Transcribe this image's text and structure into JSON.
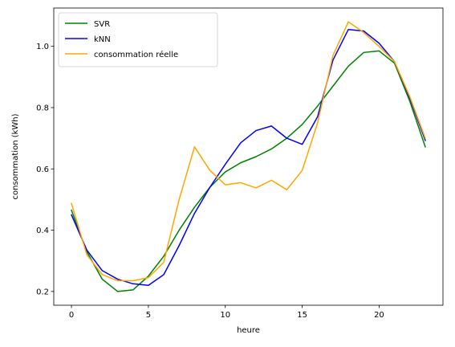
{
  "chart_data": {
    "type": "line",
    "xlabel": "heure",
    "ylabel": "consommation (kWh)",
    "xlim": [
      -1.15,
      24.15
    ],
    "ylim": [
      0.155,
      1.125
    ],
    "xticks": [
      0,
      5,
      10,
      15,
      20
    ],
    "xtick_labels": [
      "0",
      "5",
      "10",
      "15",
      "20"
    ],
    "yticks": [
      0.2,
      0.4,
      0.6,
      0.8,
      1.0
    ],
    "ytick_labels": [
      "0.2",
      "0.4",
      "0.6",
      "0.8",
      "1.0"
    ],
    "grid": false,
    "legend_position": "top-left",
    "x": [
      0,
      1,
      2,
      3,
      4,
      5,
      6,
      7,
      8,
      9,
      10,
      11,
      12,
      13,
      14,
      15,
      16,
      17,
      18,
      19,
      20,
      21,
      22,
      23
    ],
    "series": [
      {
        "name": "SVR",
        "color": "#008000",
        "values": [
          0.465,
          0.33,
          0.24,
          0.2,
          0.205,
          0.25,
          0.315,
          0.4,
          0.475,
          0.54,
          0.59,
          0.62,
          0.64,
          0.665,
          0.7,
          0.745,
          0.805,
          0.87,
          0.935,
          0.98,
          0.985,
          0.945,
          0.82,
          0.672
        ]
      },
      {
        "name": "kNN",
        "color": "#0000ff",
        "values": [
          0.45,
          0.335,
          0.268,
          0.24,
          0.225,
          0.22,
          0.255,
          0.35,
          0.455,
          0.54,
          0.615,
          0.685,
          0.725,
          0.74,
          0.7,
          0.68,
          0.77,
          0.955,
          1.055,
          1.05,
          1.01,
          0.95,
          0.83,
          0.693
        ]
      },
      {
        "name": "consommation réelle",
        "color": "#ffa500",
        "values": [
          0.487,
          0.32,
          0.255,
          0.235,
          0.235,
          0.245,
          0.295,
          0.5,
          0.672,
          0.595,
          0.548,
          0.555,
          0.538,
          0.563,
          0.532,
          0.595,
          0.75,
          0.97,
          1.08,
          1.045,
          1.0,
          0.95,
          0.835,
          0.7
        ]
      }
    ]
  }
}
